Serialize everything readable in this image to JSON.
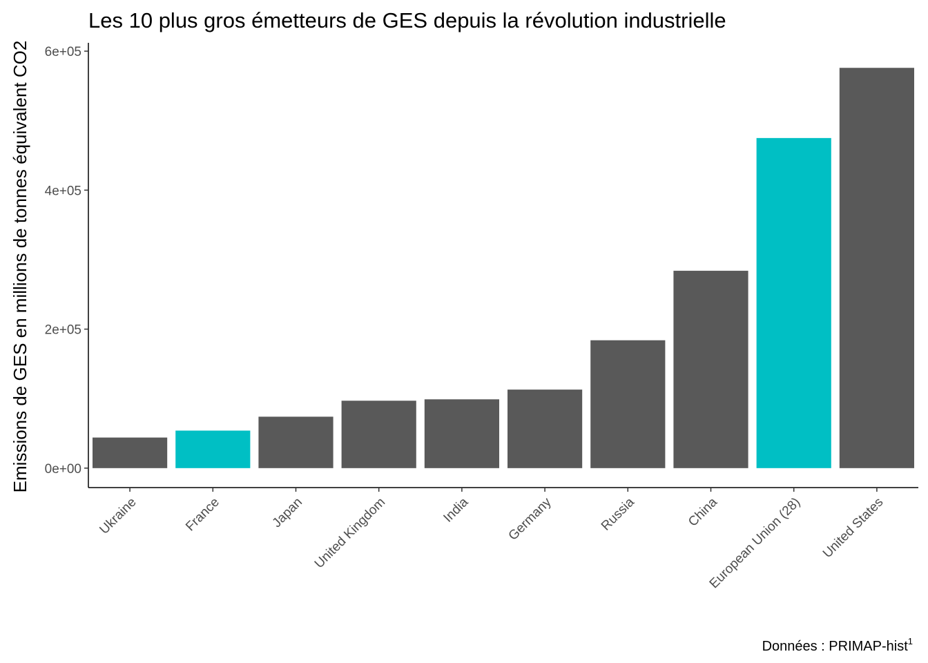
{
  "chart_data": {
    "type": "bar",
    "title": "Les 10 plus gros émetteurs de GES depuis la révolution industrielle",
    "xlabel": "",
    "ylabel": "Emissions de GES en millions de tonnes équivalent CO2",
    "caption": "Données : PRIMAP-hist",
    "caption_sup": "1",
    "ylim": [
      -28000,
      612000
    ],
    "yticks": [
      0,
      200000,
      400000,
      600000
    ],
    "ytick_labels": [
      "0e+00",
      "2e+05",
      "4e+05",
      "6e+05"
    ],
    "categories": [
      "Ukraine",
      "France",
      "Japan",
      "United Kingdom",
      "India",
      "Germany",
      "Russia",
      "China",
      "European Union (28)",
      "United States"
    ],
    "values": [
      44000,
      54000,
      74000,
      97000,
      99000,
      113000,
      184000,
      284000,
      475000,
      576000
    ],
    "highlighted": [
      false,
      true,
      false,
      false,
      false,
      false,
      false,
      false,
      true,
      false
    ],
    "colors": {
      "default": "#595959",
      "highlight": "#00BFC4"
    },
    "grid": false,
    "legend": "none"
  }
}
